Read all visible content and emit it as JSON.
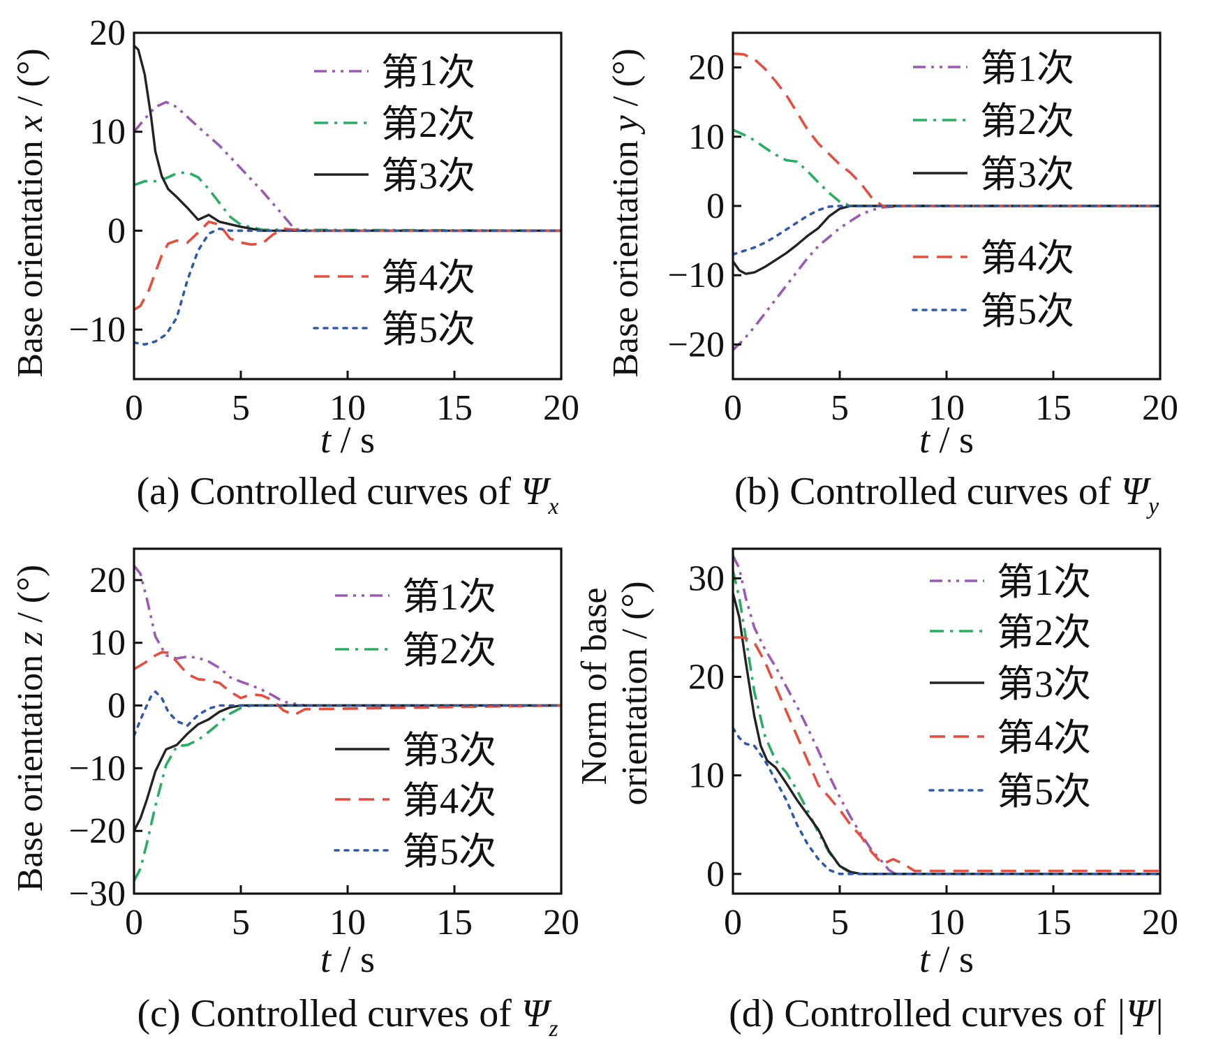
{
  "chart_data": [
    {
      "type": "line",
      "caption_prefix": "(a) Controlled curves of ",
      "caption_symbol": "Ψ",
      "caption_sub": "x",
      "ylabel_text": "Base orientation ",
      "ylabel_var": "x",
      "ylabel_unit": " / (°)",
      "xlabel_var": "t",
      "xlabel_unit": " / s",
      "xlim": [
        0,
        20
      ],
      "ylim": [
        -15,
        20
      ],
      "xticks": [
        "0",
        "5",
        "10",
        "15",
        "20"
      ],
      "yticks": [
        "−10",
        "0",
        "10",
        "20"
      ],
      "ytick_values": [
        -10,
        0,
        10,
        20
      ],
      "grid": false,
      "legend_groups": [
        [
          0,
          1,
          2
        ],
        [
          3,
          4
        ]
      ],
      "series": [
        {
          "name": "第1次",
          "color": "#9b59b6",
          "style": "dashdotdot",
          "x": [
            0,
            0.5,
            1,
            1.5,
            2,
            3,
            4,
            5,
            6,
            7,
            7.5,
            8,
            20
          ],
          "y": [
            10,
            11.3,
            12.5,
            13,
            12.5,
            10.5,
            8.6,
            6.3,
            4,
            1.5,
            0.2,
            0,
            0
          ]
        },
        {
          "name": "第2次",
          "color": "#27ae60",
          "style": "dashdot",
          "x": [
            0,
            0.5,
            1,
            1.5,
            2,
            2.5,
            3,
            3.5,
            4,
            4.5,
            5,
            6,
            20
          ],
          "y": [
            4.6,
            5,
            5,
            5.3,
            5.8,
            5.9,
            5.4,
            4.2,
            2.8,
            1.4,
            0.6,
            0.1,
            0
          ]
        },
        {
          "name": "第3次",
          "color": "#222222",
          "style": "solid",
          "x": [
            0,
            0.2,
            0.5,
            0.8,
            1,
            1.3,
            1.6,
            2,
            2.5,
            3,
            3.5,
            4,
            5,
            6,
            20
          ],
          "y": [
            18.7,
            18.3,
            15.8,
            11.5,
            8,
            5.5,
            4.2,
            3.4,
            2.3,
            1.1,
            1.6,
            0.9,
            0.4,
            0,
            0
          ]
        },
        {
          "name": "第4次",
          "color": "#e74c3c",
          "style": "dashed",
          "x": [
            0,
            0.3,
            0.7,
            1,
            1.3,
            1.6,
            2,
            2.5,
            3,
            3.5,
            4,
            4.5,
            5,
            5.5,
            6,
            6.5,
            7,
            8,
            20
          ],
          "y": [
            -8,
            -7.6,
            -6,
            -4.2,
            -2.5,
            -1.3,
            -1,
            -1.2,
            -0.2,
            0.9,
            0.6,
            -0.8,
            -1.2,
            -1.4,
            -1.3,
            -0.4,
            0.2,
            0,
            0
          ]
        },
        {
          "name": "第5次",
          "color": "#2e5aa8",
          "style": "dotted",
          "x": [
            0,
            0.5,
            1,
            1.5,
            2,
            2.5,
            3,
            3.5,
            4,
            4.5,
            5,
            20
          ],
          "y": [
            -11.3,
            -11.5,
            -11.2,
            -10.5,
            -8.8,
            -5,
            -2,
            -0.3,
            0.2,
            0,
            0,
            0
          ]
        }
      ]
    },
    {
      "type": "line",
      "caption_prefix": "(b) Controlled curves of ",
      "caption_symbol": "Ψ",
      "caption_sub": "y",
      "ylabel_text": "Base orientation ",
      "ylabel_var": "y",
      "ylabel_unit": " / (°)",
      "xlabel_var": "t",
      "xlabel_unit": " / s",
      "xlim": [
        0,
        20
      ],
      "ylim": [
        -25,
        25
      ],
      "xticks": [
        "0",
        "5",
        "10",
        "15",
        "20"
      ],
      "yticks": [
        "−20",
        "−10",
        "0",
        "10",
        "20"
      ],
      "ytick_values": [
        -20,
        -10,
        0,
        10,
        20
      ],
      "grid": false,
      "legend_groups": [
        [
          0,
          1,
          2
        ],
        [
          3,
          4
        ]
      ],
      "series": [
        {
          "name": "第1次",
          "color": "#9b59b6",
          "style": "dashdotdot",
          "x": [
            0,
            0.5,
            1,
            1.5,
            2,
            2.5,
            3,
            3.5,
            4,
            4.5,
            5,
            5.5,
            6,
            6.5,
            7,
            8,
            20
          ],
          "y": [
            -20.8,
            -19.3,
            -17.5,
            -15.5,
            -13.5,
            -11.5,
            -9.5,
            -7.5,
            -5.8,
            -4.5,
            -3.2,
            -2.2,
            -1.2,
            -0.6,
            -0.2,
            0,
            0
          ]
        },
        {
          "name": "第2次",
          "color": "#27ae60",
          "style": "dashdot",
          "x": [
            0,
            0.5,
            1,
            1.5,
            2,
            2.5,
            3,
            3.5,
            4,
            4.5,
            5,
            5.5,
            20
          ],
          "y": [
            11,
            10.3,
            9.5,
            8.4,
            7.4,
            6.6,
            6.4,
            5,
            3.4,
            1.9,
            0.6,
            0,
            0
          ]
        },
        {
          "name": "第3次",
          "color": "#222222",
          "style": "solid",
          "x": [
            0,
            0.3,
            0.6,
            1,
            1.5,
            2,
            2.5,
            3,
            3.5,
            4,
            4.5,
            5,
            5.5,
            6,
            20
          ],
          "y": [
            -8,
            -9.3,
            -9.8,
            -9.6,
            -8.8,
            -7.8,
            -6.8,
            -5.6,
            -4.3,
            -3.2,
            -1.5,
            -0.4,
            0,
            0,
            0
          ]
        },
        {
          "name": "第4次",
          "color": "#e74c3c",
          "style": "dashed",
          "x": [
            0,
            0.5,
            1,
            1.5,
            2,
            2.5,
            3,
            3.5,
            4,
            4.5,
            5,
            5.5,
            6,
            6.5,
            7,
            20
          ],
          "y": [
            22,
            21.9,
            21.2,
            19.8,
            18,
            16,
            13.5,
            11,
            9,
            7.5,
            6,
            4.8,
            3.2,
            1.2,
            0,
            0
          ]
        },
        {
          "name": "第5次",
          "color": "#2e5aa8",
          "style": "dotted",
          "x": [
            0,
            0.5,
            1,
            1.5,
            2,
            2.5,
            3,
            3.5,
            4,
            4.5,
            5,
            20
          ],
          "y": [
            -7,
            -6.5,
            -6,
            -5.3,
            -4.4,
            -3.4,
            -2.4,
            -1.4,
            -0.6,
            -0.1,
            0,
            0
          ]
        }
      ]
    },
    {
      "type": "line",
      "caption_prefix": "(c) Controlled curves of ",
      "caption_symbol": "Ψ",
      "caption_sub": "z",
      "ylabel_text": "Base orientation ",
      "ylabel_var": "z",
      "ylabel_unit": " / (°)",
      "xlabel_var": "t",
      "xlabel_unit": " / s",
      "xlim": [
        0,
        20
      ],
      "ylim": [
        -30,
        25
      ],
      "xticks": [
        "0",
        "5",
        "10",
        "15",
        "20"
      ],
      "yticks": [
        "−30",
        "−20",
        "−10",
        "0",
        "10",
        "20"
      ],
      "ytick_values": [
        -30,
        -20,
        -10,
        0,
        10,
        20
      ],
      "grid": false,
      "legend_groups": [
        [
          0,
          1
        ],
        [
          2,
          3,
          4
        ]
      ],
      "series": [
        {
          "name": "第1次",
          "color": "#9b59b6",
          "style": "dashdotdot",
          "x": [
            0,
            0.3,
            0.6,
            1,
            1.5,
            2,
            2.5,
            3,
            3.5,
            4,
            4.5,
            5,
            5.5,
            6,
            6.5,
            7,
            8,
            20
          ],
          "y": [
            22.3,
            21,
            17,
            11,
            8,
            7.5,
            7.8,
            7.6,
            7,
            6,
            4.5,
            3.8,
            3.2,
            2.5,
            1.6,
            0.6,
            0,
            0
          ]
        },
        {
          "name": "第2次",
          "color": "#27ae60",
          "style": "dashdot",
          "x": [
            0,
            0.3,
            0.6,
            1,
            1.5,
            2,
            2.5,
            3,
            3.5,
            4,
            4.5,
            5,
            5.5,
            6,
            20
          ],
          "y": [
            -28,
            -26,
            -22,
            -16,
            -9.5,
            -6.5,
            -6.3,
            -5.5,
            -4.2,
            -2.8,
            -1.3,
            -0.4,
            0,
            0,
            0
          ]
        },
        {
          "name": "第3次",
          "color": "#222222",
          "style": "solid",
          "x": [
            0,
            0.3,
            0.6,
            1,
            1.5,
            2,
            2.5,
            3,
            3.5,
            4,
            4.5,
            5,
            5.5,
            20
          ],
          "y": [
            -20,
            -18,
            -15,
            -10.5,
            -7,
            -6.3,
            -4.5,
            -3,
            -2.2,
            -1,
            -0.3,
            0,
            0,
            0
          ]
        },
        {
          "name": "第4次",
          "color": "#e74c3c",
          "style": "dashed",
          "x": [
            0,
            0.5,
            1,
            1.3,
            1.6,
            2,
            2.5,
            3,
            3.5,
            4,
            4.5,
            5,
            5.5,
            6,
            6.5,
            7,
            7.5,
            8,
            20
          ],
          "y": [
            5.8,
            6.8,
            8,
            8.5,
            8.4,
            7,
            5,
            4.2,
            4,
            3.6,
            2.2,
            1.2,
            1.8,
            1.6,
            0.8,
            -0.8,
            -1.5,
            -0.6,
            0
          ]
        },
        {
          "name": "第5次",
          "color": "#2e5aa8",
          "style": "dotted",
          "x": [
            0,
            0.4,
            0.8,
            1,
            1.3,
            1.6,
            2,
            2.5,
            3,
            3.5,
            4,
            4.5,
            20
          ],
          "y": [
            -4.8,
            -1.5,
            1.5,
            2.2,
            1.2,
            -1,
            -2.5,
            -3.2,
            -1.5,
            -0.5,
            0,
            0,
            0
          ]
        }
      ]
    },
    {
      "type": "line",
      "caption_prefix": "(d) Controlled curves of ",
      "caption_symbol": "|Ψ|",
      "caption_sub": "",
      "ylabel_line1": "Norm of base",
      "ylabel_line2": "orientation / (°)",
      "xlabel_var": "t",
      "xlabel_unit": " / s",
      "xlim": [
        0,
        20
      ],
      "ylim": [
        -2,
        33
      ],
      "xticks": [
        "0",
        "5",
        "10",
        "15",
        "20"
      ],
      "yticks": [
        "0",
        "10",
        "20",
        "30"
      ],
      "ytick_values": [
        0,
        10,
        20,
        30
      ],
      "grid": false,
      "legend_groups": [
        [
          0,
          1,
          2,
          3,
          4
        ]
      ],
      "series": [
        {
          "name": "第1次",
          "color": "#9b59b6",
          "style": "dashdotdot",
          "x": [
            0,
            0.3,
            0.6,
            1,
            1.5,
            2,
            2.5,
            3,
            3.5,
            4,
            4.5,
            5,
            5.5,
            6,
            6.5,
            7,
            7.3,
            7.6,
            20
          ],
          "y": [
            32.3,
            31,
            28,
            25,
            22.8,
            21,
            19,
            17,
            14.8,
            12.5,
            10,
            7.8,
            5.8,
            4,
            2.4,
            1.2,
            0.4,
            0,
            0
          ]
        },
        {
          "name": "第2次",
          "color": "#27ae60",
          "style": "dashdot",
          "x": [
            0,
            0.3,
            0.6,
            1,
            1.5,
            2,
            2.5,
            3,
            3.5,
            4,
            4.5,
            5,
            5.5,
            6,
            20
          ],
          "y": [
            30.8,
            28,
            24,
            18.5,
            14,
            11.5,
            10.3,
            8.5,
            6.4,
            4.2,
            2.2,
            0.8,
            0.1,
            0,
            0
          ]
        },
        {
          "name": "第3次",
          "color": "#222222",
          "style": "solid",
          "x": [
            0,
            0.3,
            0.6,
            1,
            1.3,
            1.6,
            2,
            2.5,
            3,
            3.5,
            4,
            4.5,
            5,
            5.5,
            6,
            20
          ],
          "y": [
            28.5,
            26,
            21.5,
            16,
            13,
            11.5,
            10.8,
            9.2,
            7.5,
            6,
            4.5,
            2.3,
            0.8,
            0.2,
            0,
            0
          ]
        },
        {
          "name": "第4次",
          "color": "#e74c3c",
          "style": "dashed",
          "x": [
            0,
            0.5,
            1,
            1.5,
            2,
            2.5,
            3,
            3.5,
            4,
            4.5,
            5,
            5.5,
            6,
            6.5,
            7,
            7.5,
            8,
            8.5,
            20
          ],
          "y": [
            24,
            24,
            23.5,
            21.5,
            19,
            16.5,
            14,
            11.5,
            9,
            7.8,
            6.5,
            5,
            3.8,
            2.2,
            1,
            1.5,
            1,
            0.3,
            0.3
          ]
        },
        {
          "name": "第5次",
          "color": "#2e5aa8",
          "style": "dotted",
          "x": [
            0,
            0.3,
            0.6,
            1,
            1.5,
            2,
            2.5,
            3,
            3.5,
            4,
            4.5,
            5,
            20
          ],
          "y": [
            14.8,
            13.8,
            13.2,
            13,
            11.5,
            9.5,
            7.5,
            5,
            3,
            1.5,
            0.4,
            0,
            0
          ]
        }
      ]
    }
  ]
}
